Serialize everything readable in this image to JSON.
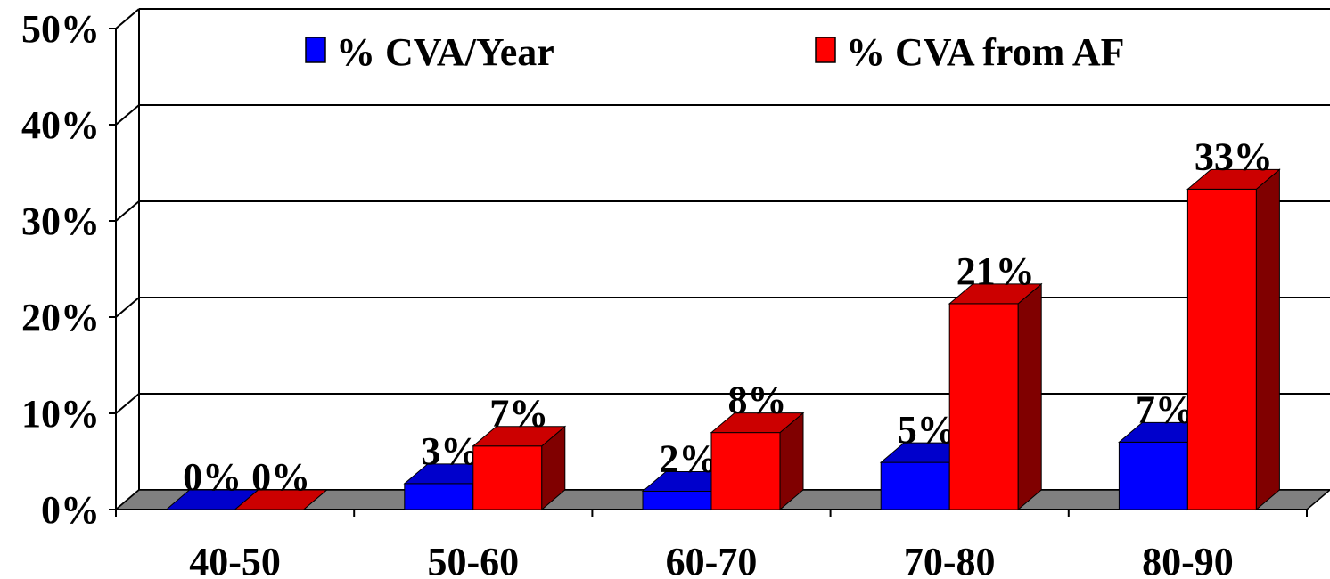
{
  "chart_data": {
    "type": "bar3d",
    "categories": [
      "40-50",
      "50-60",
      "60-70",
      "70-80",
      "80-90"
    ],
    "series": [
      {
        "name": "% CVA/Year",
        "color": "#0000ff",
        "values": [
          0,
          2.7,
          1.9,
          4.9,
          7.0
        ],
        "value_labels": [
          "0%",
          "3%",
          "2%",
          "5%",
          "7%"
        ]
      },
      {
        "name": "% CVA from AF",
        "color": "#ff0000",
        "values": [
          0,
          6.6,
          8.0,
          21.4,
          33.3
        ],
        "value_labels": [
          "0%",
          "7%",
          "8%",
          "21%",
          "33%"
        ]
      }
    ],
    "ylim": [
      0,
      50
    ],
    "yticks": [
      {
        "value": 0,
        "label": "0%"
      },
      {
        "value": 10,
        "label": "10%"
      },
      {
        "value": 20,
        "label": "20%"
      },
      {
        "value": 30,
        "label": "30%"
      },
      {
        "value": 40,
        "label": "40%"
      },
      {
        "value": 50,
        "label": "50%"
      }
    ],
    "grid": true,
    "legend": "top"
  }
}
